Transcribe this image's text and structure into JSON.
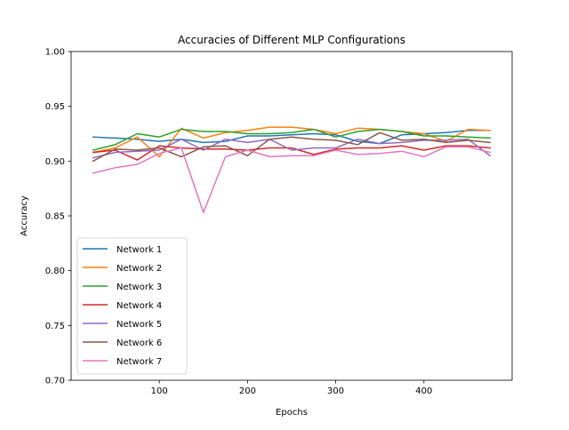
{
  "chart_data": {
    "type": "line",
    "title": "Accuracies of Different MLP Configurations",
    "xlabel": "Epochs",
    "ylabel": "Accuracy",
    "xlim": [
      0,
      500
    ],
    "ylim": [
      0.7,
      1.0
    ],
    "x_ticks": [
      100,
      200,
      300,
      400
    ],
    "y_ticks": [
      0.7,
      0.75,
      0.8,
      0.85,
      0.9,
      0.95,
      1.0
    ],
    "x_tick_labels": [
      "100",
      "200",
      "300",
      "400"
    ],
    "y_tick_labels": [
      "0.70",
      "0.75",
      "0.80",
      "0.85",
      "0.90",
      "0.95",
      "1.00"
    ],
    "grid": false,
    "legend_position": "lower-left",
    "x": [
      25,
      50,
      75,
      100,
      125,
      150,
      175,
      200,
      225,
      250,
      275,
      300,
      325,
      350,
      375,
      400,
      425,
      450,
      475
    ],
    "series": [
      {
        "name": "Network 1",
        "color": "#1f77b4",
        "values": [
          0.922,
          0.921,
          0.92,
          0.918,
          0.92,
          0.917,
          0.918,
          0.923,
          0.923,
          0.924,
          0.925,
          0.924,
          0.918,
          0.916,
          0.924,
          0.925,
          0.926,
          0.928,
          0.928
        ]
      },
      {
        "name": "Network 2",
        "color": "#ff7f0e",
        "values": [
          0.908,
          0.912,
          0.922,
          0.904,
          0.93,
          0.921,
          0.926,
          0.928,
          0.931,
          0.931,
          0.929,
          0.925,
          0.93,
          0.929,
          0.927,
          0.925,
          0.918,
          0.929,
          0.928
        ]
      },
      {
        "name": "Network 3",
        "color": "#2ca02c",
        "values": [
          0.91,
          0.915,
          0.925,
          0.922,
          0.929,
          0.927,
          0.927,
          0.925,
          0.925,
          0.926,
          0.929,
          0.922,
          0.927,
          0.929,
          0.927,
          0.923,
          0.923,
          0.922,
          0.921
        ]
      },
      {
        "name": "Network 4",
        "color": "#d62728",
        "values": [
          0.908,
          0.91,
          0.901,
          0.914,
          0.912,
          0.911,
          0.911,
          0.91,
          0.912,
          0.912,
          0.906,
          0.911,
          0.912,
          0.912,
          0.914,
          0.91,
          0.914,
          0.914,
          0.912
        ]
      },
      {
        "name": "Network 5",
        "color": "#9467bd",
        "values": [
          0.903,
          0.908,
          0.909,
          0.91,
          0.92,
          0.91,
          0.92,
          0.917,
          0.92,
          0.91,
          0.912,
          0.912,
          0.92,
          0.916,
          0.917,
          0.919,
          0.919,
          0.92,
          0.905
        ]
      },
      {
        "name": "Network 6",
        "color": "#8c564b",
        "values": [
          0.9,
          0.911,
          0.91,
          0.912,
          0.904,
          0.913,
          0.914,
          0.905,
          0.92,
          0.922,
          0.92,
          0.919,
          0.915,
          0.926,
          0.919,
          0.92,
          0.917,
          0.919,
          0.917
        ]
      },
      {
        "name": "Network 7",
        "color": "#e377c2",
        "values": [
          0.889,
          0.894,
          0.897,
          0.907,
          0.912,
          0.853,
          0.904,
          0.91,
          0.904,
          0.905,
          0.905,
          0.91,
          0.906,
          0.907,
          0.909,
          0.904,
          0.913,
          0.913,
          0.908
        ]
      }
    ]
  }
}
